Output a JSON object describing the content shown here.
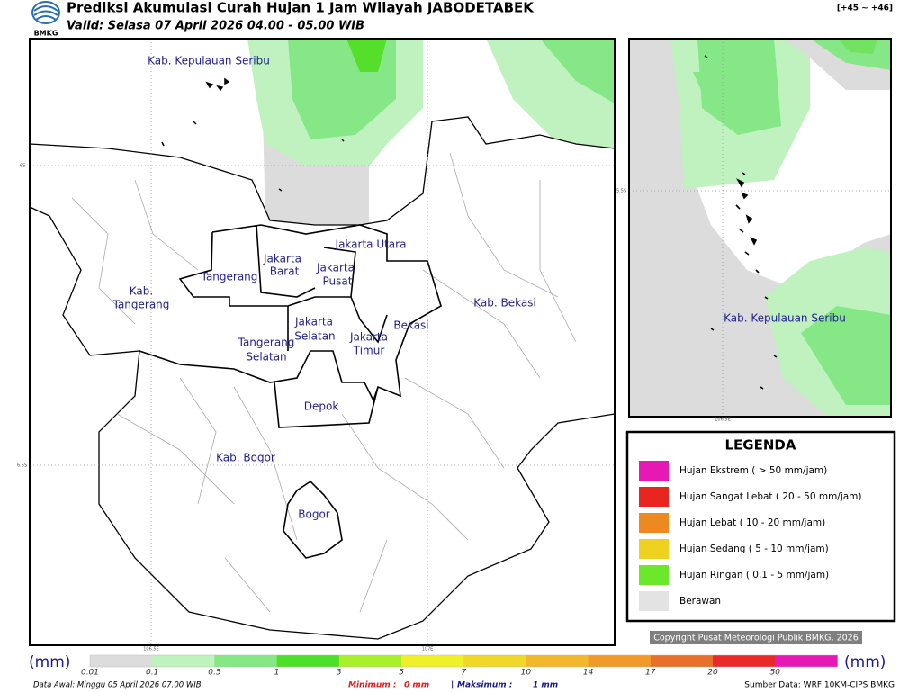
{
  "header": {
    "logo_text": "BMKG",
    "title": "Prediksi Akumulasi Curah Hujan 1 Jam Wilayah JABODETABEK",
    "subtitle": "Valid: Selasa 07 April 2026 04.00 - 05.00 WIB",
    "code": "[+45 ~ +46]"
  },
  "main_map": {
    "labels": [
      [
        "Kab. Kepulauan Seribu"
      ],
      [
        "Jakarta Utara"
      ],
      [
        "Jakarta",
        "Barat"
      ],
      [
        "Jakarta",
        "Pusat"
      ],
      [
        "Tangerang"
      ],
      [
        "Kab.",
        "Tangerang"
      ],
      [
        "Jakarta",
        "Selatan"
      ],
      [
        "Bekasi"
      ],
      [
        "Kab. Bekasi"
      ],
      [
        "Jakarta",
        "Timur"
      ],
      [
        "Tangerang",
        "Selatan"
      ],
      [
        "Depok"
      ],
      [
        "Kab. Bogor"
      ],
      [
        "Bogor"
      ]
    ],
    "lat_labels": [
      "6S",
      "6.5S"
    ],
    "lon_labels": [
      "106.5E",
      "107E"
    ]
  },
  "inset_map": {
    "labels": [
      [
        "Kab. Kepulauan Seribu"
      ]
    ],
    "lat_labels": [
      "5.5S"
    ],
    "lon_labels": [
      "106.5E"
    ]
  },
  "legend": {
    "title": "LEGENDA",
    "items": [
      {
        "label": "Hujan Ekstrem ( > 50 mm/jam)",
        "color": "#e619b4"
      },
      {
        "label": "Hujan Sangat Lebat ( 20 - 50 mm/jam)",
        "color": "#e8261f"
      },
      {
        "label": "Hujan Lebat ( 10 - 20 mm/jam)",
        "color": "#ec8a1f"
      },
      {
        "label": "Hujan Sedang ( 5 - 10 mm/jam)",
        "color": "#efd21f"
      },
      {
        "label": "Hujan Ringan ( 0,1 - 5 mm/jam)",
        "color": "#6be82a"
      },
      {
        "label": "Berawan",
        "color": "#e3e3e3"
      }
    ]
  },
  "copyright": "Copyright Pusat Meteorologi Publik BMKG, 2026",
  "colorbar": {
    "unit": "(mm)",
    "ticks": [
      "0.01",
      "0.1",
      "0.5",
      "1",
      "3",
      "5",
      "7",
      "10",
      "14",
      "17",
      "20",
      "50"
    ],
    "colors": [
      "#dcdcdc",
      "#bff2bf",
      "#86e786",
      "#4ddf2a",
      "#aaf02a",
      "#f0f02a",
      "#f0d82a",
      "#f0b82a",
      "#f09a2a",
      "#e8702a",
      "#e82a2a",
      "#e619b4"
    ]
  },
  "footer": {
    "data_awal": "Data Awal: Minggu 05 April 2026 07.00 WIB",
    "min_label": "Minimum :",
    "min_value": "0 mm",
    "separator": "|",
    "max_label": "Maksimum :",
    "max_value": "1 mm",
    "source": "Sumber Data: WRF 10KM-CIPS BMKG"
  }
}
